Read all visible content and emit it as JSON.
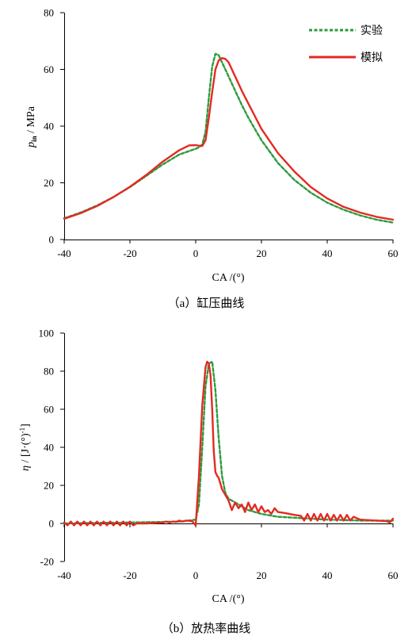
{
  "chart_data": [
    {
      "type": "line",
      "caption": "（a）缸压曲线",
      "xlabel": "CA /(°)",
      "ylabel_main": "p",
      "ylabel_sub": "in",
      "ylabel_rest": " /  MPa",
      "xlim": [
        -40,
        60
      ],
      "ylim": [
        0,
        80
      ],
      "xticks": [
        -40,
        -20,
        0,
        20,
        40,
        60
      ],
      "yticks": [
        0,
        20,
        40,
        60,
        80
      ],
      "legend_position": "top-right",
      "series": [
        {
          "name": "实验",
          "color": "#2e9a3c",
          "style": "dashed",
          "x": [
            -40,
            -35,
            -30,
            -25,
            -20,
            -15,
            -10,
            -5,
            0,
            1,
            2,
            3,
            4,
            5,
            6,
            7,
            8,
            9,
            10,
            12,
            14,
            16,
            18,
            20,
            25,
            30,
            35,
            40,
            45,
            50,
            55,
            60
          ],
          "y": [
            7.5,
            9.5,
            12,
            15,
            18.5,
            22.5,
            26.5,
            30,
            32,
            32.5,
            33.5,
            38,
            50,
            61,
            65.5,
            65,
            62.5,
            60,
            57.5,
            52.5,
            47.5,
            43,
            39,
            35,
            27,
            21,
            16.5,
            13,
            10.5,
            8.5,
            7,
            6
          ]
        },
        {
          "name": "模拟",
          "color": "#e32a22",
          "style": "solid",
          "x": [
            -40,
            -35,
            -30,
            -25,
            -20,
            -15,
            -10,
            -5,
            -2,
            0,
            1,
            2,
            3,
            4,
            5,
            6,
            7,
            8,
            9,
            10,
            12,
            14,
            16,
            18,
            20,
            25,
            30,
            35,
            40,
            45,
            50,
            55,
            60
          ],
          "y": [
            7.3,
            9.3,
            11.8,
            15,
            18.6,
            22.8,
            27.5,
            31.5,
            33.2,
            33.3,
            33.1,
            33.0,
            35,
            43,
            52,
            60,
            63.2,
            64,
            63.7,
            62.5,
            57.5,
            52.5,
            48,
            43.5,
            39,
            30.5,
            24,
            18.5,
            14.5,
            11.5,
            9.5,
            8,
            7
          ]
        }
      ]
    },
    {
      "type": "line",
      "caption": "（b）放热率曲线",
      "xlabel": "CA /(°)",
      "ylabel_main": "η",
      "ylabel_rest": " / [J·(°)",
      "ylabel_sup": "-1",
      "ylabel_end": "]",
      "xlim": [
        -40,
        60
      ],
      "ylim": [
        -20,
        100
      ],
      "xticks": [
        -40,
        -20,
        0,
        20,
        40,
        60
      ],
      "yticks": [
        -20,
        0,
        20,
        40,
        60,
        80,
        100
      ],
      "series": [
        {
          "name": "实验",
          "color": "#2e9a3c",
          "style": "dashed",
          "x": [
            -40,
            -30,
            -20,
            -10,
            -5,
            -2,
            0,
            1,
            2,
            3,
            4,
            5,
            6,
            7,
            8,
            9,
            10,
            12,
            14,
            16,
            18,
            20,
            25,
            30,
            35,
            40,
            45,
            50,
            55,
            60
          ],
          "y": [
            0,
            0.3,
            0.5,
            0.8,
            1,
            1.5,
            2,
            10,
            40,
            72,
            84,
            85,
            70,
            45,
            25,
            16,
            13,
            11,
            9,
            7,
            6,
            5,
            3.5,
            3,
            2.5,
            2,
            1.8,
            1.5,
            1.5,
            1.5
          ]
        },
        {
          "name": "模拟",
          "color": "#e32a22",
          "style": "solid",
          "x": [
            -40,
            -39,
            -38,
            -37,
            -36,
            -35,
            -34,
            -33,
            -32,
            -31,
            -30,
            -29,
            -28,
            -27,
            -26,
            -25,
            -24,
            -23,
            -22,
            -21,
            -20,
            -19,
            -18,
            -15,
            -10,
            -9,
            -8,
            -7,
            -6,
            -5,
            -4,
            -3,
            -2,
            -1,
            -0.5,
            0,
            1,
            2,
            3,
            3.5,
            4,
            4.5,
            5,
            5.5,
            6,
            6.5,
            7,
            8,
            9,
            10,
            11,
            12,
            13,
            14,
            15,
            16,
            17,
            18,
            19,
            20,
            21,
            22,
            23,
            24,
            25,
            27,
            30,
            32,
            33,
            34,
            35,
            36,
            37,
            38,
            39,
            40,
            41,
            42,
            43,
            44,
            45,
            46,
            47,
            48,
            50,
            52,
            55,
            58,
            59,
            60
          ],
          "y": [
            0.5,
            -1,
            1,
            -1,
            1,
            -1,
            1,
            -1,
            1,
            -1,
            1,
            -1,
            1,
            -1,
            1,
            -1,
            1,
            -1,
            1,
            -1,
            1,
            -1,
            0,
            0,
            0.5,
            1,
            0.5,
            1,
            0.8,
            1.5,
            1,
            1.5,
            1.5,
            1,
            0,
            -1,
            25,
            62,
            82,
            85,
            84,
            78,
            60,
            38,
            27,
            25,
            24,
            18,
            15,
            12,
            7,
            11,
            8,
            10,
            6,
            11,
            7,
            10,
            6,
            9,
            6,
            7,
            5,
            8,
            6,
            5.5,
            4.5,
            4,
            1.5,
            5,
            1.5,
            5,
            1.5,
            5,
            1.5,
            5,
            1.5,
            4.5,
            1.5,
            4.5,
            1.5,
            4.5,
            1.5,
            3.5,
            2,
            1.8,
            1.5,
            1.2,
            0.5,
            2.5
          ]
        }
      ]
    }
  ]
}
